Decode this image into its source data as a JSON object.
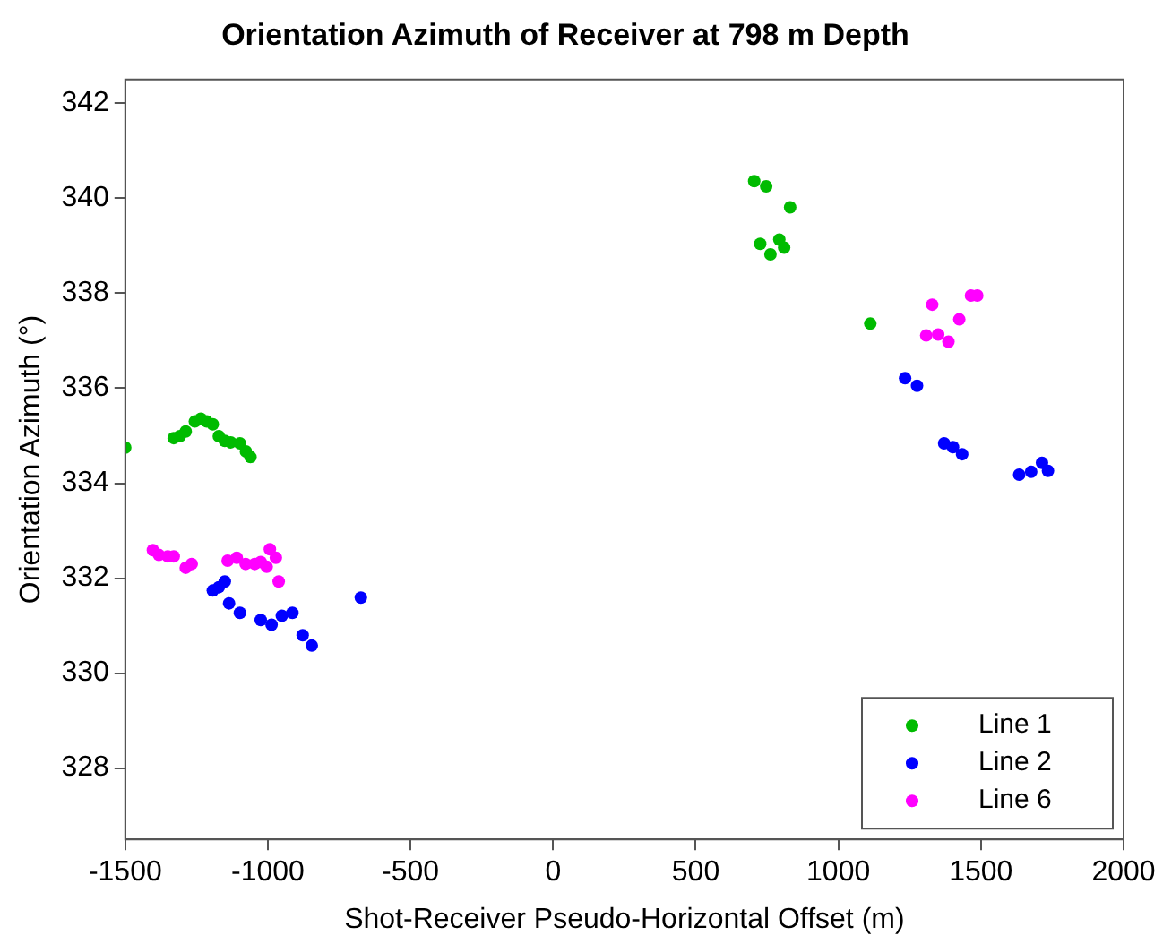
{
  "chart_data": {
    "type": "scatter",
    "title": "Orientation Azimuth of Receiver at 798 m Depth",
    "xlabel": "Shot-Receiver Pseudo-Horizontal Offset (m)",
    "ylabel": "Orientation Azimuth (°)",
    "xlim": [
      -1500,
      2000
    ],
    "xticks": [
      -1500,
      -1000,
      -500,
      0,
      500,
      1000,
      1500,
      2000
    ],
    "ylim": [
      326.5,
      342.5
    ],
    "yticks": [
      328,
      330,
      332,
      334,
      336,
      338,
      340,
      342
    ],
    "grid": false,
    "legend": "bottom right",
    "marker": "circle",
    "series": [
      {
        "name": "Line 1",
        "color": "#00bb00",
        "x": [
          -1500,
          -1330,
          -1309,
          -1288,
          -1256,
          -1235,
          -1214,
          -1193,
          -1172,
          -1151,
          -1130,
          -1098,
          -1077,
          -1061,
          705,
          747,
          831,
          726,
          762,
          793,
          810,
          1112
        ],
        "values": [
          334.75,
          334.95,
          334.99,
          335.09,
          335.3,
          335.36,
          335.3,
          335.24,
          334.99,
          334.89,
          334.86,
          334.84,
          334.67,
          334.55,
          340.36,
          340.25,
          339.81,
          339.04,
          338.82,
          339.13,
          338.96,
          337.36
        ]
      },
      {
        "name": "Line 2",
        "color": "#0000ff",
        "x": [
          -1193,
          -1172,
          -1151,
          -1136,
          -1098,
          -1025,
          -987,
          -951,
          -914,
          -878,
          -846,
          -674,
          1234,
          1276,
          1371,
          1402,
          1434,
          1634,
          1676,
          1714,
          1735
        ],
        "values": [
          331.74,
          331.81,
          331.93,
          331.47,
          331.27,
          331.12,
          331.02,
          331.21,
          331.27,
          330.8,
          330.58,
          331.59,
          336.21,
          336.05,
          334.84,
          334.76,
          334.61,
          334.18,
          334.24,
          334.43,
          334.26
        ]
      },
      {
        "name": "Line 6",
        "color": "#ff00ff",
        "x": [
          -1403,
          -1382,
          -1351,
          -1330,
          -1288,
          -1267,
          -1141,
          -1109,
          -1078,
          -1046,
          -1025,
          -1004,
          -993,
          -972,
          -962,
          1329,
          1308,
          1350,
          1386,
          1424,
          1465,
          1487
        ],
        "values": [
          332.59,
          332.49,
          332.46,
          332.46,
          332.22,
          332.3,
          332.37,
          332.43,
          332.3,
          332.3,
          332.34,
          332.24,
          332.61,
          332.43,
          331.93,
          337.76,
          337.11,
          337.13,
          336.98,
          337.45,
          337.95,
          337.95
        ]
      }
    ]
  }
}
